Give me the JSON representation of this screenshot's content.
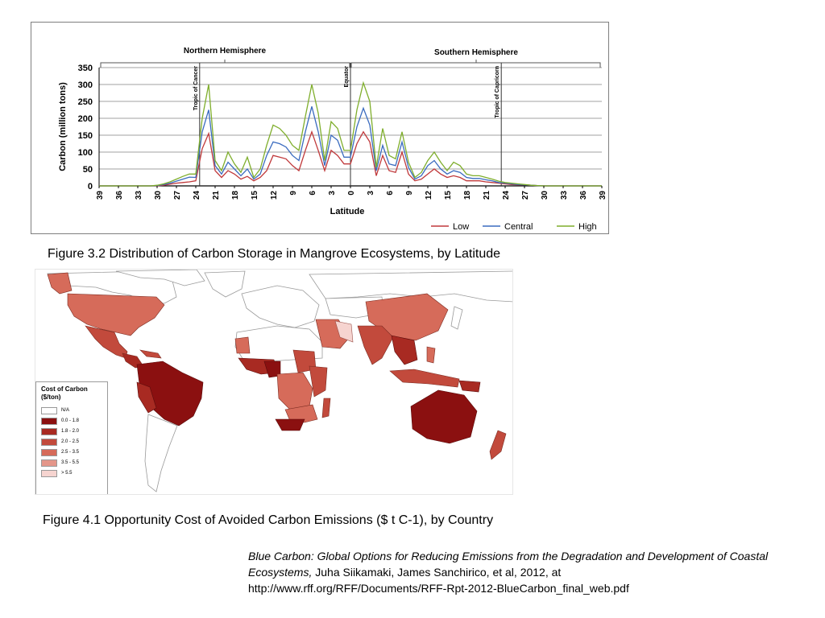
{
  "chart_data": {
    "type": "line",
    "xlabel": "Latitude",
    "ylabel": "Carbon (million tons)",
    "ylim": [
      0,
      350
    ],
    "yticks": [
      0,
      50,
      100,
      150,
      200,
      250,
      300,
      350
    ],
    "grid": true,
    "legend_position": "bottom-right",
    "x_tick_labels": [
      "39",
      "36",
      "33",
      "30",
      "27",
      "24",
      "21",
      "18",
      "15",
      "12",
      "9",
      "6",
      "3",
      "0",
      "3",
      "6",
      "9",
      "12",
      "15",
      "18",
      "21",
      "24",
      "27",
      "30",
      "33",
      "36",
      "39"
    ],
    "x_note": "Latitude in degrees: positive values north of the Equator, negative values south",
    "x": [
      39,
      38,
      37,
      36,
      35,
      34,
      33,
      32,
      31,
      30,
      29,
      28,
      27,
      26,
      25,
      24,
      23,
      22,
      21,
      20,
      19,
      18,
      17,
      16,
      15,
      14,
      13,
      12,
      11,
      10,
      9,
      8,
      7,
      6,
      5,
      4,
      3,
      2,
      1,
      0,
      -1,
      -2,
      -3,
      -4,
      -5,
      -6,
      -7,
      -8,
      -9,
      -10,
      -11,
      -12,
      -13,
      -14,
      -15,
      -16,
      -17,
      -18,
      -19,
      -20,
      -21,
      -22,
      -23,
      -24,
      -25,
      -26,
      -27,
      -28,
      -29,
      -30,
      -31,
      -32,
      -33,
      -34,
      -35,
      -36,
      -37,
      -38,
      -39
    ],
    "series": [
      {
        "name": "Low",
        "color": "#c0393b",
        "values": [
          0,
          0,
          0,
          0,
          0,
          0,
          0,
          0,
          0,
          0,
          2,
          5,
          8,
          10,
          12,
          15,
          110,
          155,
          45,
          25,
          45,
          35,
          20,
          28,
          15,
          25,
          45,
          90,
          85,
          80,
          60,
          45,
          105,
          160,
          105,
          45,
          105,
          90,
          65,
          65,
          125,
          160,
          130,
          30,
          90,
          45,
          40,
          100,
          35,
          15,
          20,
          35,
          50,
          35,
          25,
          30,
          25,
          15,
          15,
          15,
          12,
          10,
          8,
          6,
          4,
          3,
          3,
          2,
          1,
          0,
          0,
          0,
          0,
          0,
          0,
          0,
          0,
          0,
          0
        ]
      },
      {
        "name": "Central",
        "color": "#3a6bbf",
        "values": [
          0,
          0,
          0,
          0,
          0,
          0,
          0,
          0,
          0,
          1,
          4,
          8,
          14,
          20,
          26,
          25,
          160,
          225,
          60,
          35,
          70,
          50,
          30,
          50,
          20,
          35,
          90,
          130,
          125,
          115,
          90,
          75,
          160,
          235,
          160,
          60,
          150,
          135,
          85,
          85,
          175,
          230,
          180,
          45,
          120,
          65,
          60,
          130,
          55,
          20,
          30,
          60,
          75,
          50,
          35,
          45,
          40,
          25,
          22,
          22,
          18,
          15,
          10,
          8,
          6,
          4,
          3,
          2,
          1,
          0,
          0,
          0,
          0,
          0,
          0,
          0,
          0,
          0,
          0
        ]
      },
      {
        "name": "High",
        "color": "#7fae2c",
        "values": [
          0,
          0,
          0,
          0,
          0,
          0,
          0,
          0,
          0,
          2,
          6,
          12,
          20,
          28,
          35,
          35,
          200,
          300,
          75,
          45,
          100,
          65,
          40,
          85,
          25,
          50,
          120,
          180,
          170,
          150,
          120,
          105,
          205,
          300,
          215,
          75,
          190,
          170,
          105,
          105,
          225,
          305,
          250,
          55,
          170,
          90,
          80,
          160,
          70,
          25,
          40,
          75,
          100,
          70,
          45,
          70,
          60,
          35,
          30,
          30,
          25,
          20,
          14,
          10,
          8,
          6,
          4,
          2,
          1,
          0,
          0,
          0,
          0,
          0,
          0,
          0,
          0,
          0,
          0
        ]
      }
    ],
    "vertical_markers": [
      {
        "label": "Tropic of Cancer",
        "x": 23.4
      },
      {
        "label": "Equator",
        "x": 0
      },
      {
        "label": "Tropic of Capricorn",
        "x": -23.4
      }
    ],
    "hemisphere_labels": [
      "Northern Hemisphere",
      "Southern Hemisphere"
    ]
  },
  "captions": {
    "figure_3_2": "Figure 3.2 Distribution of Carbon Storage in Mangrove Ecosystems, by Latitude",
    "figure_4_1": "Figure 4.1 Opportunity Cost of Avoided Carbon Emissions ($ t C-1), by Country"
  },
  "map": {
    "legend_title": "Cost of Carbon\n($/ton)",
    "legend_items": [
      {
        "label": "N/A",
        "color": "#ffffff"
      },
      {
        "label": "0.0 - 1.8",
        "color": "#8b1010"
      },
      {
        "label": "1.8 - 2.0",
        "color": "#a82a22"
      },
      {
        "label": "2.0 - 2.5",
        "color": "#c24a3c"
      },
      {
        "label": "2.5 - 3.5",
        "color": "#d66b5a"
      },
      {
        "label": "3.5 - 5.5",
        "color": "#e4968a"
      },
      {
        "label": "> 5.5",
        "color": "#f6d4d0"
      }
    ]
  },
  "reference": {
    "title": "Blue Carbon: Global Options for Reducing Emissions from the Degradation and Development of Coastal Ecosystems,",
    "authors": " Juha Siikamaki, James Sanchirico, et al,  2012, at",
    "url": "http://www.rff.org/RFF/Documents/RFF-Rpt-2012-BlueCarbon_final_web.pdf"
  }
}
